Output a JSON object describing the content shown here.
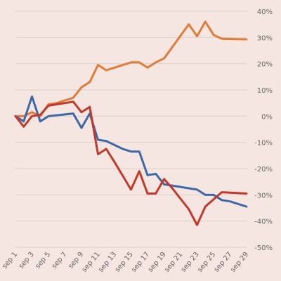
{
  "chart_data": {
    "type": "line",
    "title": "",
    "xlabel": "",
    "ylabel": "",
    "x": [
      "sep 1",
      "sep 2",
      "sep 3",
      "sep 4",
      "sep 5",
      "sep 6",
      "sep 7",
      "sep 8",
      "sep 9",
      "sep 10",
      "sep 11",
      "sep 12",
      "sep 13",
      "sep 14",
      "sep 15",
      "sep 16",
      "sep 17",
      "sep 18",
      "sep 19",
      "sep 20",
      "sep 21",
      "sep 22",
      "sep 23",
      "sep 24",
      "sep 25",
      "sep 26",
      "sep 27",
      "sep 28",
      "sep 29"
    ],
    "x_tick_labels": [
      "sep 1",
      "sep 3",
      "sep 5",
      "sep 7",
      "sep 9",
      "sep 11",
      "sep 13",
      "sep 15",
      "sep 17",
      "sep 19",
      "sep 21",
      "sep 23",
      "sep 25",
      "sep 27",
      "sep 29"
    ],
    "y_ticks": [
      40,
      30,
      20,
      10,
      0,
      -10,
      -20,
      -30,
      -40,
      -50
    ],
    "y_tick_labels": [
      "40%",
      "30%",
      "20%",
      "10%",
      "0%",
      "-10%",
      "-20%",
      "-30%",
      "-40%",
      "-50%"
    ],
    "ylim": [
      -50,
      40
    ],
    "y_axis_side": "right",
    "grid": true,
    "legend": "none",
    "series": [
      {
        "color": "#e07b39",
        "points": [
          [
            0,
            0
          ],
          [
            1,
            0
          ],
          [
            2,
            1.5
          ],
          [
            3,
            0
          ],
          [
            4,
            4.5
          ],
          [
            5,
            5
          ],
          [
            6,
            6
          ],
          [
            7,
            7
          ],
          [
            8,
            11
          ],
          [
            9,
            13
          ],
          [
            10,
            19.5
          ],
          [
            11,
            17.5
          ],
          [
            12,
            18.5
          ],
          [
            14,
            20.5
          ],
          [
            15,
            20.5
          ],
          [
            16,
            18.5
          ],
          [
            17,
            20.5
          ],
          [
            18,
            22
          ],
          [
            21,
            35
          ],
          [
            22,
            30.5
          ],
          [
            23,
            36
          ],
          [
            24,
            31
          ],
          [
            25,
            29.5
          ],
          [
            28,
            29.3
          ]
        ]
      },
      {
        "color": "#3d68a8",
        "points": [
          [
            0,
            0
          ],
          [
            1,
            -2
          ],
          [
            2,
            7.5
          ],
          [
            3,
            -2
          ],
          [
            4,
            0
          ],
          [
            7,
            1
          ],
          [
            8,
            -4.5
          ],
          [
            9,
            1
          ],
          [
            10,
            -9
          ],
          [
            11,
            -9.5
          ],
          [
            12,
            -11
          ],
          [
            13,
            -12.5
          ],
          [
            14,
            -13.5
          ],
          [
            15,
            -13.5
          ],
          [
            16,
            -22.5
          ],
          [
            17,
            -22
          ],
          [
            18,
            -26
          ],
          [
            19,
            -26.5
          ],
          [
            20,
            -27
          ],
          [
            21,
            -27.5
          ],
          [
            22,
            -28
          ],
          [
            23,
            -30
          ],
          [
            24,
            -30
          ],
          [
            25,
            -32
          ],
          [
            26,
            -32.5
          ],
          [
            27,
            -33.5
          ],
          [
            28,
            -34.5
          ]
        ]
      },
      {
        "color": "#c0392b",
        "points": [
          [
            0,
            0
          ],
          [
            1,
            -4
          ],
          [
            2,
            0
          ],
          [
            3,
            0.5
          ],
          [
            4,
            4
          ],
          [
            7,
            5.5
          ],
          [
            8,
            1.5
          ],
          [
            9,
            3.5
          ],
          [
            10,
            -14.5
          ],
          [
            11,
            -12.5
          ],
          [
            12,
            -17.5
          ],
          [
            14,
            -28
          ],
          [
            15,
            -21
          ],
          [
            16,
            -29.5
          ],
          [
            17,
            -29.5
          ],
          [
            18,
            -24
          ],
          [
            19,
            -27.5
          ],
          [
            21,
            -35.5
          ],
          [
            22,
            -41.5
          ],
          [
            23,
            -34.5
          ],
          [
            25,
            -29
          ],
          [
            28,
            -29.5
          ]
        ]
      }
    ]
  }
}
